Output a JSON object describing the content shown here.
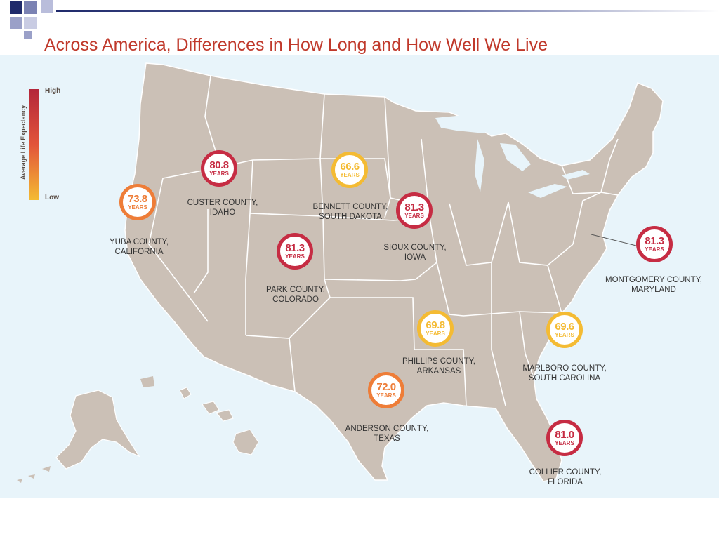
{
  "slide": {
    "title": "Across America, Differences in How Long and How Well We Live"
  },
  "legend": {
    "title": "Average Life Expectancy",
    "high": "High",
    "low": "Low",
    "colors": {
      "high": "#b3263a",
      "mid": "#e2543a",
      "low": "#f4bb33"
    }
  },
  "colors": {
    "title": "#c0392b",
    "ocean": "#e8f4fa",
    "land": "#cbc0b6",
    "border": "#ffffff",
    "high_badge": "#c62c43",
    "mid_badge": "#ee7d38",
    "low_badge": "#f4bb33"
  },
  "counties": [
    {
      "id": "custer",
      "value": "80.8",
      "unit": "YEARS",
      "name_line1": "CUSTER COUNTY,",
      "name_line2": "IDAHO",
      "level": "high"
    },
    {
      "id": "yuba",
      "value": "73.8",
      "unit": "YEARS",
      "name_line1": "YUBA COUNTY,",
      "name_line2": "CALIFORNIA",
      "level": "mid"
    },
    {
      "id": "bennett",
      "value": "66.6",
      "unit": "YEARS",
      "name_line1": "BENNETT COUNTY,",
      "name_line2": "SOUTH DAKOTA",
      "level": "low"
    },
    {
      "id": "sioux",
      "value": "81.3",
      "unit": "YEARS",
      "name_line1": "SIOUX COUNTY,",
      "name_line2": "IOWA",
      "level": "high"
    },
    {
      "id": "park",
      "value": "81.3",
      "unit": "YEARS",
      "name_line1": "PARK COUNTY,",
      "name_line2": "COLORADO",
      "level": "high"
    },
    {
      "id": "montgomery",
      "value": "81.3",
      "unit": "YEARS",
      "name_line1": "MONTGOMERY COUNTY,",
      "name_line2": "MARYLAND",
      "level": "high"
    },
    {
      "id": "phillips",
      "value": "69.8",
      "unit": "YEARS",
      "name_line1": "PHILLIPS COUNTY,",
      "name_line2": "ARKANSAS",
      "level": "low"
    },
    {
      "id": "marlboro",
      "value": "69.6",
      "unit": "YEARS",
      "name_line1": "MARLBORO COUNTY,",
      "name_line2": "SOUTH CAROLINA",
      "level": "low"
    },
    {
      "id": "anderson",
      "value": "72.0",
      "unit": "YEARS",
      "name_line1": "ANDERSON COUNTY,",
      "name_line2": "TEXAS",
      "level": "mid"
    },
    {
      "id": "collier",
      "value": "81.0",
      "unit": "YEARS",
      "name_line1": "COLLIER COUNTY,",
      "name_line2": "FLORIDA",
      "level": "high"
    }
  ]
}
